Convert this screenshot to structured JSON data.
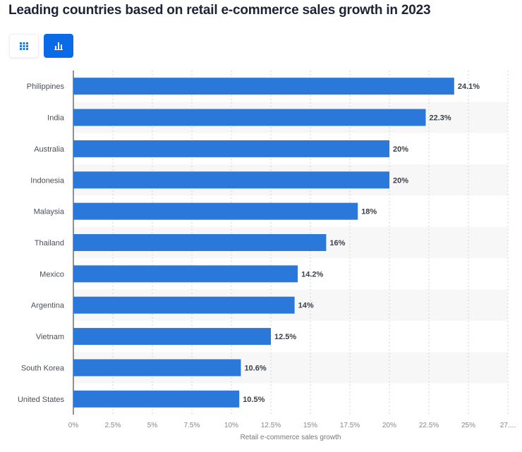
{
  "title": "Leading countries based on retail e-commerce sales growth in 2023",
  "toolbar": {
    "table_icon": "grid-icon",
    "chart_icon": "bar-chart-icon",
    "active": "chart"
  },
  "colors": {
    "bar": "#2a78da",
    "accent": "#0b6ae6",
    "stripe": "#f7f7f7"
  },
  "chart_data": {
    "type": "bar",
    "orientation": "horizontal",
    "categories": [
      "Philippines",
      "India",
      "Australia",
      "Indonesia",
      "Malaysia",
      "Thailand",
      "Mexico",
      "Argentina",
      "Vietnam",
      "South Korea",
      "United States"
    ],
    "values": [
      24.1,
      22.3,
      20,
      20,
      18,
      16,
      14.2,
      14,
      12.5,
      10.6,
      10.5
    ],
    "data_labels": [
      "24.1%",
      "22.3%",
      "20%",
      "20%",
      "18%",
      "16%",
      "14.2%",
      "14%",
      "12.5%",
      "10.6%",
      "10.5%"
    ],
    "xlabel": "Retail e-commerce sales growth",
    "xlim": [
      0,
      27.5
    ],
    "ticks": [
      "0%",
      "2.5%",
      "5%",
      "7.5%",
      "10%",
      "12.5%",
      "15%",
      "17.5%",
      "20%",
      "22.5%",
      "25%",
      "27...."
    ],
    "grid": true
  }
}
